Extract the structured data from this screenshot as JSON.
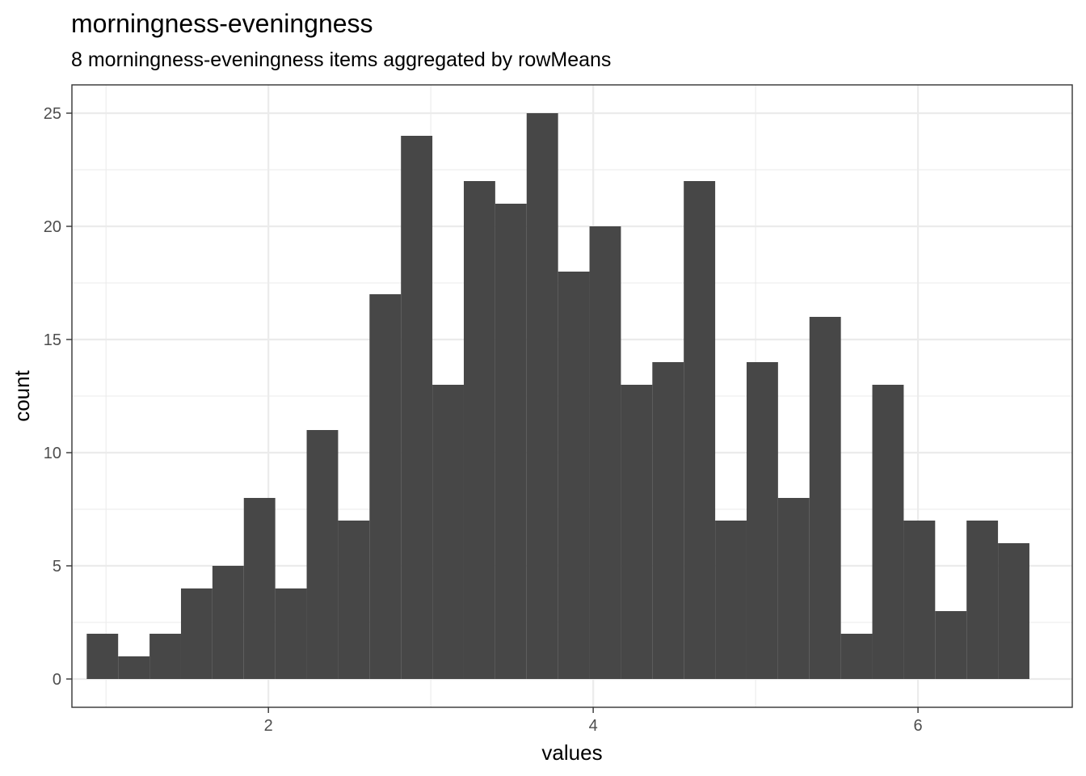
{
  "chart_data": {
    "type": "bar",
    "title": "morningness-eveningness",
    "subtitle": "8 morningness-eveningness items aggregated by rowMeans",
    "xlabel": "values",
    "ylabel": "count",
    "xlim": [
      0.79,
      6.95
    ],
    "ylim": [
      -1.25,
      26.25
    ],
    "x_major_ticks": [
      2,
      4,
      6
    ],
    "x_minor_ticks": [
      1,
      3,
      5
    ],
    "y_major_ticks": [
      0,
      5,
      10,
      15,
      20,
      25
    ],
    "y_minor_ticks": [
      2.5,
      7.5,
      12.5,
      17.5,
      22.5
    ],
    "bin_width": 0.1935,
    "bins": [
      {
        "x": 0.9779,
        "count": 2
      },
      {
        "x": 1.1714,
        "count": 1
      },
      {
        "x": 1.3649,
        "count": 2
      },
      {
        "x": 1.5584,
        "count": 4
      },
      {
        "x": 1.7519,
        "count": 5
      },
      {
        "x": 1.9454,
        "count": 8
      },
      {
        "x": 2.1389,
        "count": 4
      },
      {
        "x": 2.3324,
        "count": 11
      },
      {
        "x": 2.5259,
        "count": 7
      },
      {
        "x": 2.7194,
        "count": 17
      },
      {
        "x": 2.9129,
        "count": 24
      },
      {
        "x": 3.1064,
        "count": 13
      },
      {
        "x": 3.2999,
        "count": 22
      },
      {
        "x": 3.4934,
        "count": 21
      },
      {
        "x": 3.6869,
        "count": 25
      },
      {
        "x": 3.8804,
        "count": 18
      },
      {
        "x": 4.0739,
        "count": 20
      },
      {
        "x": 4.2674,
        "count": 13
      },
      {
        "x": 4.4609,
        "count": 14
      },
      {
        "x": 4.6544,
        "count": 22
      },
      {
        "x": 4.8479,
        "count": 7
      },
      {
        "x": 5.0414,
        "count": 14
      },
      {
        "x": 5.2349,
        "count": 8
      },
      {
        "x": 5.4284,
        "count": 16
      },
      {
        "x": 5.6219,
        "count": 2
      },
      {
        "x": 5.8154,
        "count": 13
      },
      {
        "x": 6.0089,
        "count": 7
      },
      {
        "x": 6.2024,
        "count": 3
      },
      {
        "x": 6.3959,
        "count": 7
      },
      {
        "x": 6.5894,
        "count": 6
      }
    ],
    "bar_color": "#474747",
    "grid": true,
    "legend": "none"
  }
}
